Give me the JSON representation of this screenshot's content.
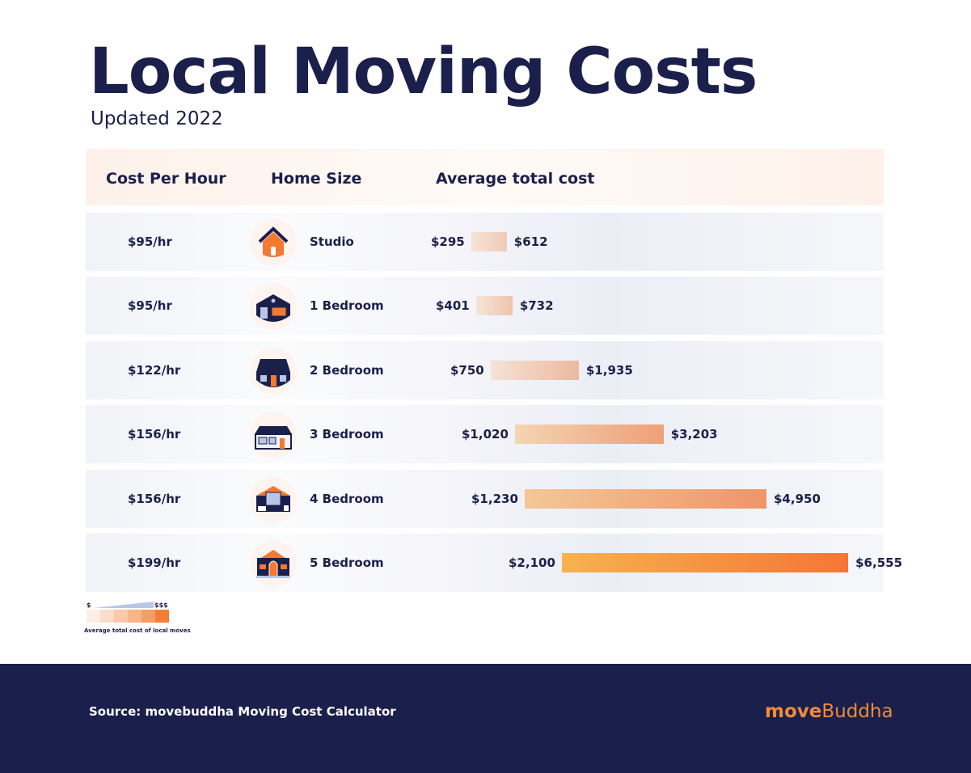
{
  "title": "Local Moving Costs",
  "subtitle": "Updated 2022",
  "headers": {
    "rate": "Cost Per Hour",
    "size": "Home Size",
    "cost": "Average total cost"
  },
  "chart_data": {
    "type": "bar",
    "subtype": "range",
    "title": "Local Moving Costs",
    "columns": [
      "Cost Per Hour",
      "Home Size",
      "Average total cost"
    ],
    "categories": [
      "Studio",
      "1 Bedroom",
      "2 Bedroom",
      "3 Bedroom",
      "4 Bedroom",
      "5 Bedroom"
    ],
    "rows": [
      {
        "rate": "$95/hr",
        "size": "Studio",
        "low": 295,
        "high": 612,
        "low_label": "$295",
        "high_label": "$612",
        "icon": "house-icon"
      },
      {
        "rate": "$95/hr",
        "size": "1 Bedroom",
        "low": 401,
        "high": 732,
        "low_label": "$401",
        "high_label": "$732",
        "icon": "garage-house-icon"
      },
      {
        "rate": "$122/hr",
        "size": "2 Bedroom",
        "low": 750,
        "high": 1935,
        "low_label": "$750",
        "high_label": "$1,935",
        "icon": "cottage-icon"
      },
      {
        "rate": "$156/hr",
        "size": "3 Bedroom",
        "low": 1020,
        "high": 3203,
        "low_label": "$1,020",
        "high_label": "$3,203",
        "icon": "ranch-house-icon"
      },
      {
        "rate": "$156/hr",
        "size": "4 Bedroom",
        "low": 1230,
        "high": 4950,
        "low_label": "$1,230",
        "high_label": "$4,950",
        "icon": "large-house-icon"
      },
      {
        "rate": "$199/hr",
        "size": "5 Bedroom",
        "low": 2100,
        "high": 6555,
        "low_label": "$2,100",
        "high_label": "$6,555",
        "icon": "mansion-icon"
      }
    ],
    "color_scale": [
      "#fdeee4",
      "#fbdcc8",
      "#f9c9aa",
      "#f7b58a",
      "#f59d63",
      "#f37f36"
    ]
  },
  "legend": {
    "low": "$",
    "high": "$$$",
    "caption": "Average total cost of local moves"
  },
  "footer": {
    "source": "Source: movebuddha Moving Cost Calculator",
    "logo_a": "move",
    "logo_b": "Buddha"
  }
}
